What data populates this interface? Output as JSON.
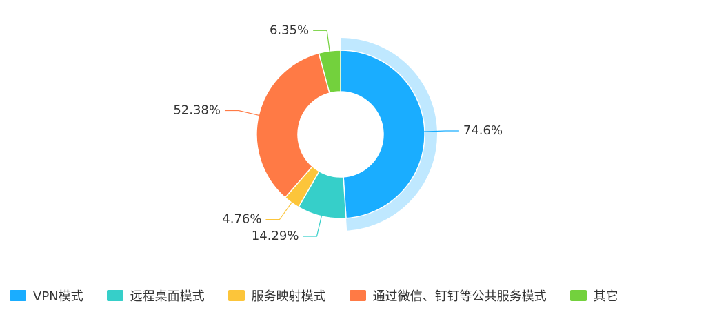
{
  "chart_data": {
    "type": "donut",
    "categories": [
      "VPN模式",
      "远程桌面模式",
      "服务映射模式",
      "通过微信、钉钉等公共服务模式",
      "其它"
    ],
    "values": [
      74.6,
      14.29,
      4.76,
      52.38,
      6.35
    ],
    "value_labels": [
      "74.6%",
      "14.29%",
      "4.76%",
      "52.38%",
      "6.35%"
    ],
    "colors": [
      "#1aadff",
      "#36cfc9",
      "#fcc53a",
      "#ff7a45",
      "#73d13d"
    ]
  }
}
